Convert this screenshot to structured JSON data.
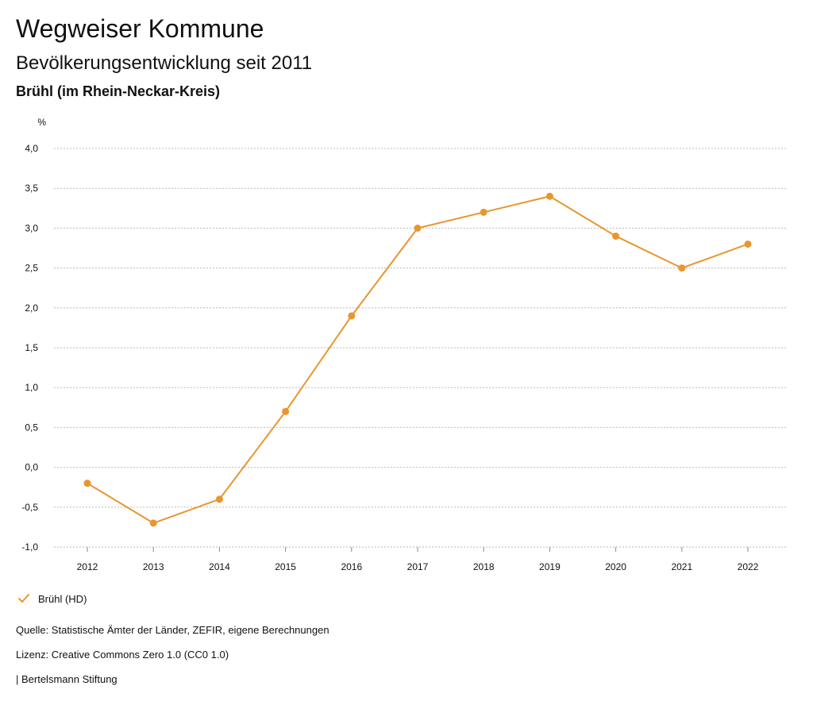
{
  "header": {
    "title": "Wegweiser Kommune",
    "subtitle": "Bevölkerungsentwicklung seit 2011",
    "region": "Brühl (im Rhein-Neckar-Kreis)"
  },
  "chart_data": {
    "type": "line",
    "ylabel": "%",
    "xlabel": "",
    "ylim": [
      -1.0,
      4.0
    ],
    "grid": true,
    "categories": [
      "2012",
      "2013",
      "2014",
      "2015",
      "2016",
      "2017",
      "2018",
      "2019",
      "2020",
      "2021",
      "2022"
    ],
    "yticks": [
      4.0,
      3.5,
      3.0,
      2.5,
      2.0,
      1.5,
      1.0,
      0.5,
      0.0,
      -0.5,
      -1.0
    ],
    "ytick_labels": [
      "4,0",
      "3,5",
      "3,0",
      "2,5",
      "2,0",
      "1,5",
      "1,0",
      "0,5",
      "0,0",
      "-0,5",
      "-1,0"
    ],
    "series": [
      {
        "name": "Brühl (HD)",
        "color": "#e8962f",
        "values": [
          -0.2,
          -0.7,
          -0.4,
          0.7,
          1.9,
          3.0,
          3.2,
          3.4,
          2.9,
          2.5,
          2.8
        ]
      }
    ],
    "legend_position": "bottom-left"
  },
  "legend": {
    "label": "Brühl (HD)"
  },
  "footer": {
    "source": "Quelle: Statistische Ämter der Länder, ZEFIR, eigene Berechnungen",
    "license": "Lizenz: Creative Commons Zero 1.0 (CC0 1.0)",
    "brand": "| Bertelsmann Stiftung"
  },
  "colors": {
    "series": "#e8962f",
    "grid": "#b9b9b9",
    "text": "#111111"
  }
}
